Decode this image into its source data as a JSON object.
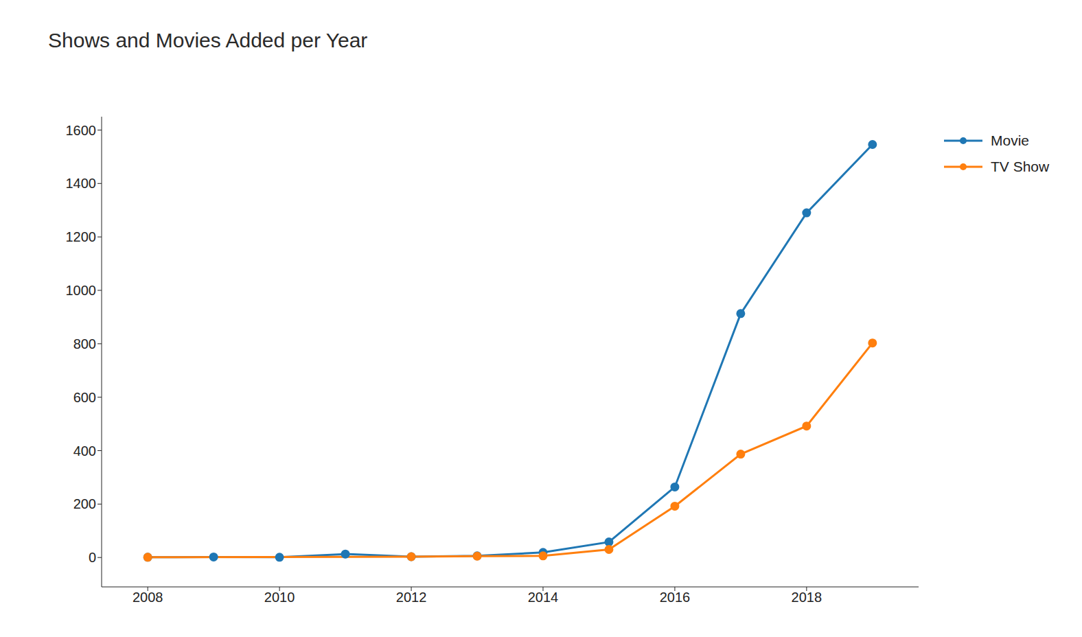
{
  "chart_data": {
    "type": "line",
    "title": "Shows and Movies Added per Year",
    "xlim": [
      2007.3,
      2019.7
    ],
    "xticks": [
      2008,
      2010,
      2012,
      2014,
      2016,
      2018
    ],
    "ylim": [
      -110,
      1650
    ],
    "yticks": [
      0,
      200,
      400,
      600,
      800,
      1000,
      1200,
      1400,
      1600
    ],
    "grid": false,
    "legend": "top right",
    "series": [
      {
        "name": "Movie",
        "color": "#1f77b4",
        "marker": "circle",
        "x": [
          2008,
          2009,
          2010,
          2011,
          2012,
          2013,
          2014,
          2015,
          2016,
          2017,
          2018,
          2019
        ],
        "values": [
          1,
          2,
          1,
          13,
          3,
          6,
          19,
          58,
          264,
          913,
          1290,
          1546
        ]
      },
      {
        "name": "TV Show",
        "color": "#ff7f0e",
        "marker": "circle",
        "x": [
          2008,
          2012,
          2013,
          2014,
          2015,
          2016,
          2017,
          2018,
          2019
        ],
        "values": [
          1,
          3,
          5,
          6,
          30,
          192,
          387,
          492,
          803
        ]
      }
    ]
  }
}
